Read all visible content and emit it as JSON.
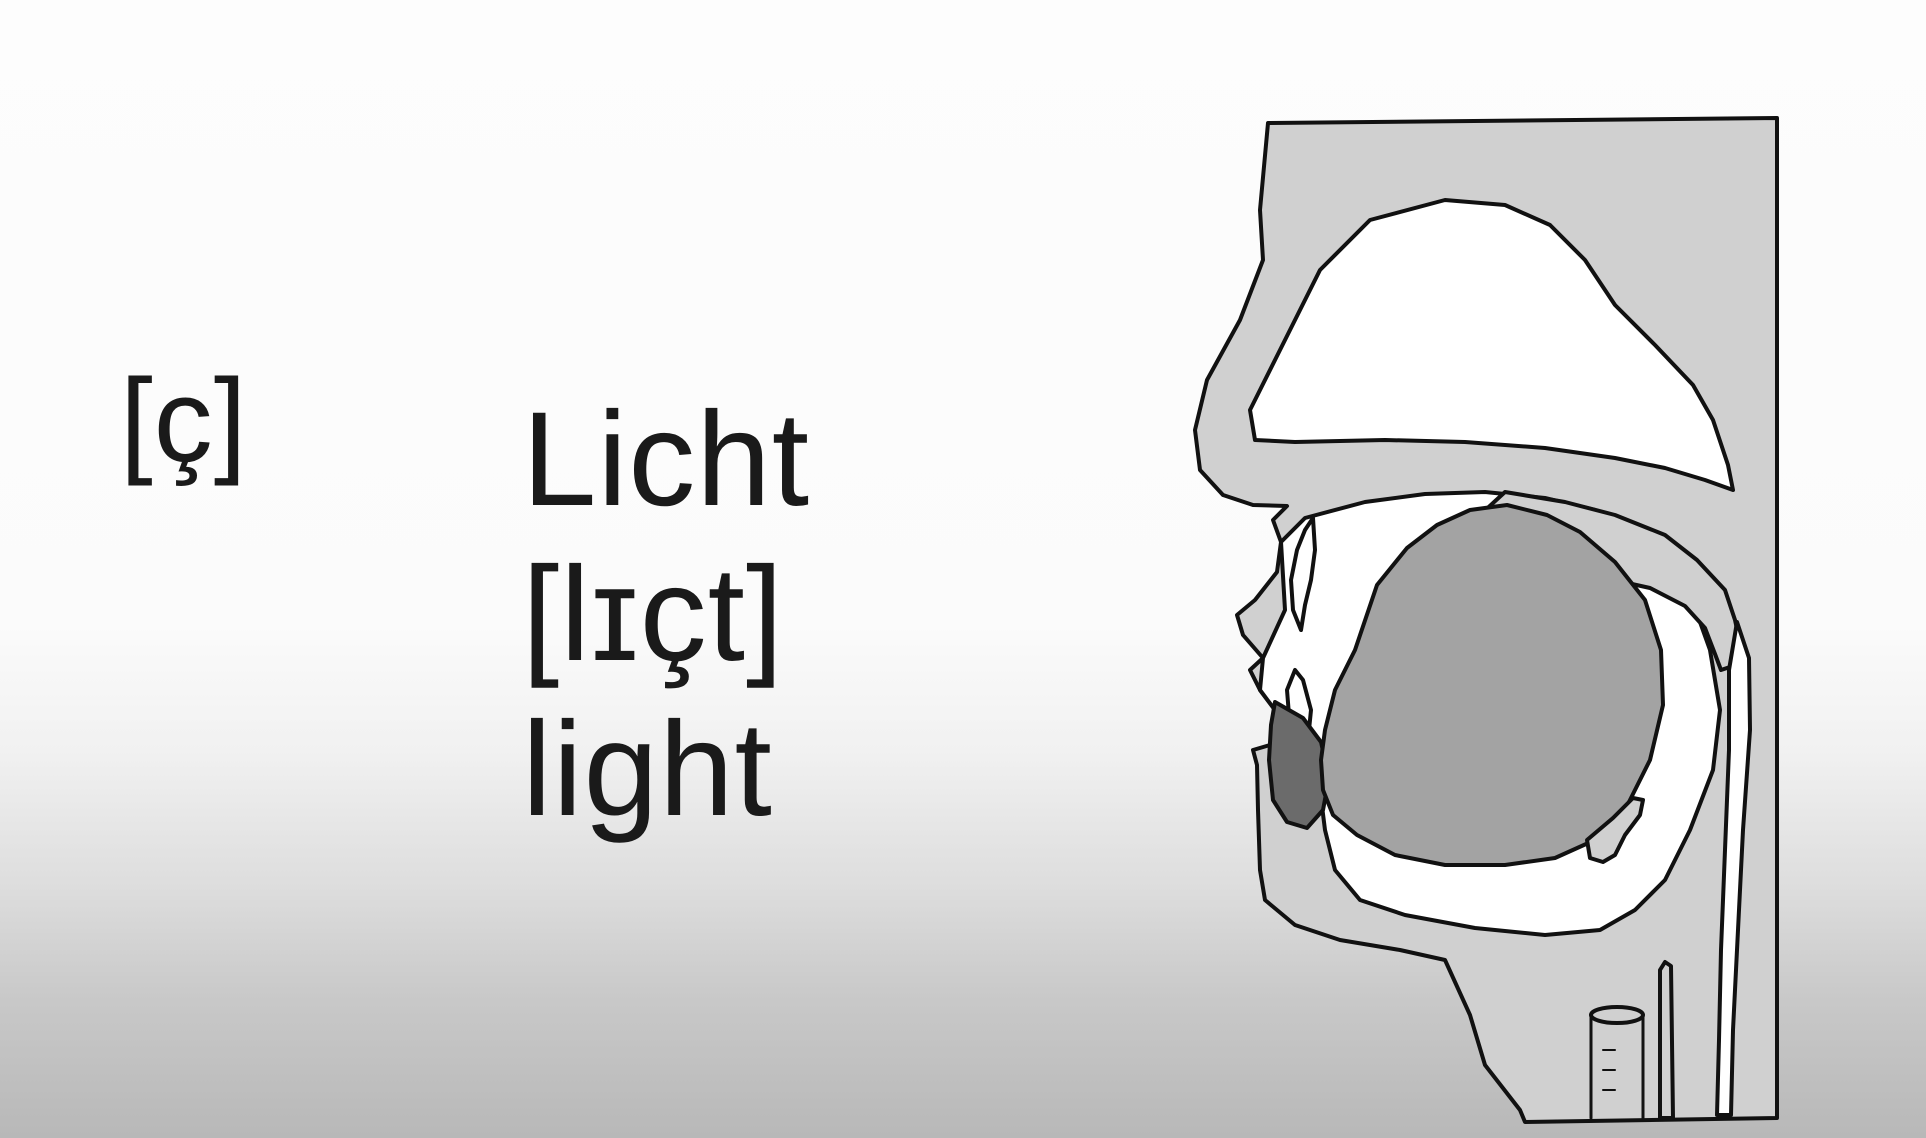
{
  "phoneme": "[ç]",
  "example": {
    "german": "Licht",
    "ipa": "[lɪçt]",
    "english": "light"
  },
  "colors": {
    "outline": "#111111",
    "tissue": "#d0d0d0",
    "tongue": "#a3a3a3",
    "lip_inner": "#6b6b6b",
    "cavity": "#ffffff"
  },
  "illustration": "vocal-tract-sagittal-section"
}
